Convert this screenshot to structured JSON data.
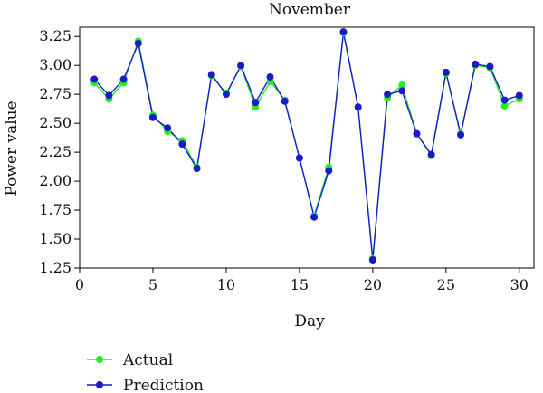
{
  "chart_data": {
    "type": "line",
    "title": "November",
    "xlabel": "Day",
    "ylabel": "Power value",
    "xlim": [
      0,
      31
    ],
    "ylim": [
      1.25,
      3.33
    ],
    "xticks": [
      0,
      5,
      10,
      15,
      20,
      25,
      30
    ],
    "xtick_labels": [
      "0",
      "5",
      "10",
      "15",
      "20",
      "25",
      "30"
    ],
    "yticks": [
      1.25,
      1.5,
      1.75,
      2.0,
      2.25,
      2.5,
      2.75,
      3.0,
      3.25
    ],
    "ytick_labels": [
      "1.25",
      "1.50",
      "1.75",
      "2.00",
      "2.25",
      "2.50",
      "2.75",
      "3.00",
      "3.25"
    ],
    "grid": false,
    "legend_position": "below-left",
    "x": [
      1,
      2,
      3,
      4,
      5,
      6,
      7,
      8,
      9,
      10,
      11,
      12,
      13,
      14,
      15,
      16,
      17,
      18,
      19,
      20,
      21,
      22,
      23,
      24,
      25,
      26,
      27,
      28,
      29,
      30
    ],
    "series": [
      {
        "name": "Actual",
        "color": "#22ee22",
        "values": [
          2.85,
          2.71,
          2.85,
          3.21,
          2.57,
          2.43,
          2.35,
          2.12,
          2.91,
          2.76,
          2.99,
          2.64,
          2.86,
          2.7,
          2.2,
          1.7,
          2.12,
          3.28,
          2.64,
          1.33,
          2.72,
          2.83,
          2.41,
          2.22,
          2.93,
          2.41,
          3.0,
          2.98,
          2.65,
          2.71
        ]
      },
      {
        "name": "Prediction",
        "color": "#1a1acc",
        "values": [
          2.88,
          2.74,
          2.88,
          3.19,
          2.55,
          2.46,
          2.32,
          2.11,
          2.92,
          2.75,
          3.0,
          2.68,
          2.9,
          2.69,
          2.2,
          1.69,
          2.09,
          3.29,
          2.64,
          1.32,
          2.75,
          2.78,
          2.41,
          2.23,
          2.94,
          2.4,
          3.01,
          2.99,
          2.7,
          2.74
        ]
      }
    ]
  }
}
